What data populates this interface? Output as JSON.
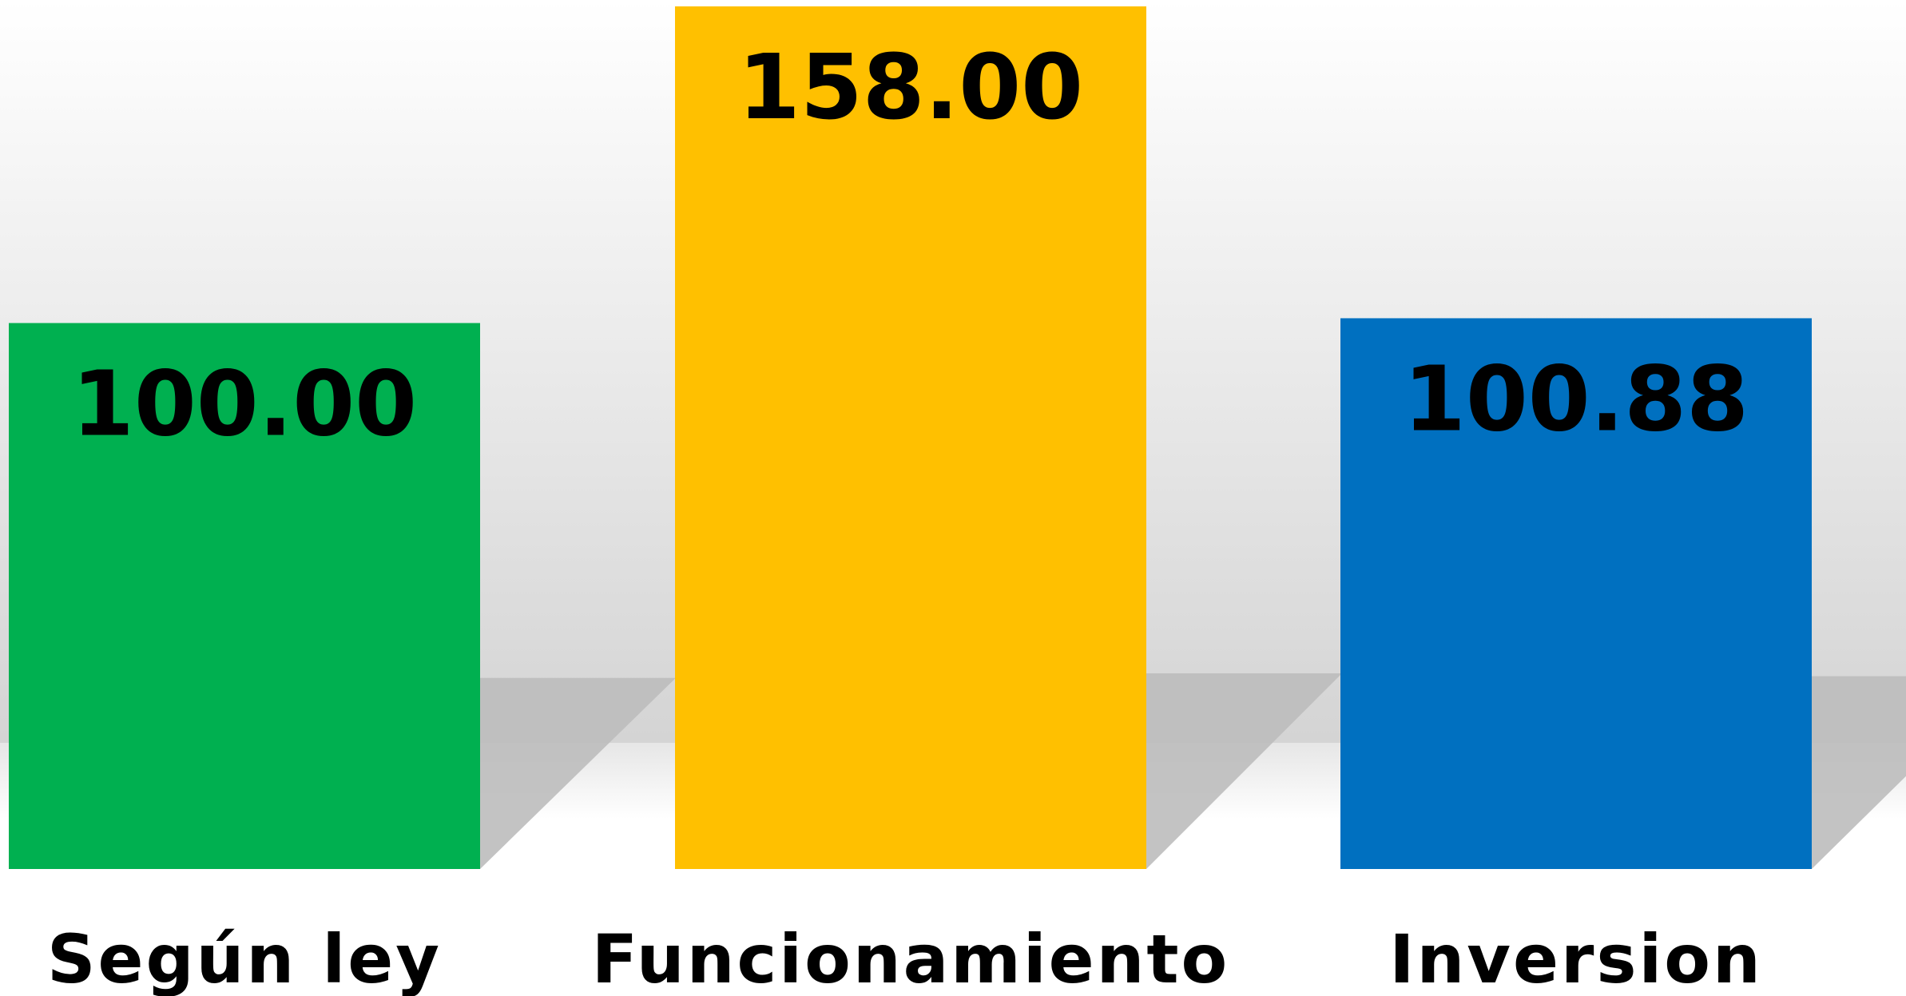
{
  "chart_data": {
    "type": "bar",
    "categories": [
      "Según ley",
      "Funcionamiento",
      "Inversion"
    ],
    "values": [
      100,
      158,
      100.88
    ],
    "value_labels": [
      "100.00",
      "158.00",
      "100.88"
    ],
    "colors": [
      "#00b050",
      "#ffc000",
      "#0070c0"
    ]
  }
}
